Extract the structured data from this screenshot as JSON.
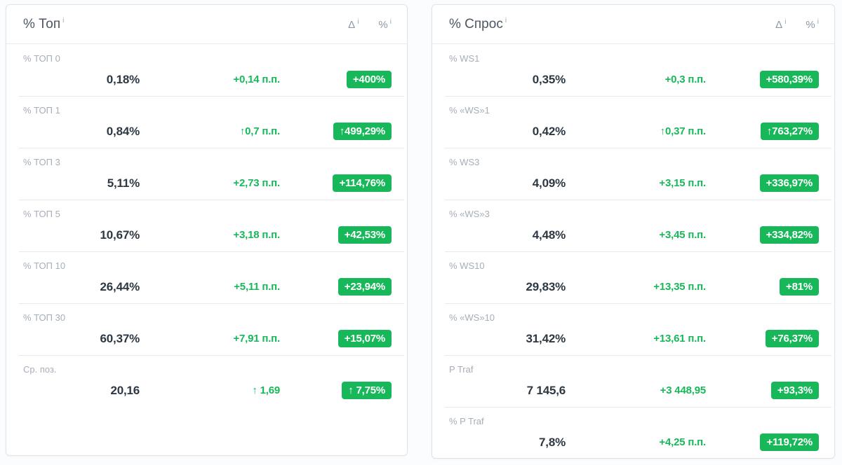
{
  "colors": {
    "positive_green": "#18b85a",
    "value_dark": "#2d3842",
    "label_gray": "#a6aeb8"
  },
  "panels": [
    {
      "title": "% Топ",
      "title_info": "i",
      "legend": {
        "delta_symbol": "Δ",
        "delta_info": "i",
        "percent_symbol": "%",
        "percent_info": "i"
      },
      "rows": [
        {
          "label": "% ТОП 0",
          "value": "0,18%",
          "delta": "+0,14 п.п.",
          "badge": "+400%"
        },
        {
          "label": "% ТОП 1",
          "value": "0,84%",
          "delta": "↑0,7 п.п.",
          "badge": "↑499,29%"
        },
        {
          "label": "% ТОП 3",
          "value": "5,11%",
          "delta": "+2,73 п.п.",
          "badge": "+114,76%"
        },
        {
          "label": "% ТОП 5",
          "value": "10,67%",
          "delta": "+3,18 п.п.",
          "badge": "+42,53%"
        },
        {
          "label": "% ТОП 10",
          "value": "26,44%",
          "delta": "+5,11 п.п.",
          "badge": "+23,94%"
        },
        {
          "label": "% ТОП 30",
          "value": "60,37%",
          "delta": "+7,91 п.п.",
          "badge": "+15,07%"
        },
        {
          "label": "Ср. поз.",
          "value": "20,16",
          "delta": "↑ 1,69",
          "badge": "↑ 7,75%"
        }
      ]
    },
    {
      "title": "% Спрос",
      "title_info": "i",
      "legend": {
        "delta_symbol": "Δ",
        "delta_info": "i",
        "percent_symbol": "%",
        "percent_info": "i"
      },
      "rows": [
        {
          "label": "% WS1",
          "value": "0,35%",
          "delta": "+0,3 п.п.",
          "badge": "+580,39%"
        },
        {
          "label": "% «WS»1",
          "value": "0,42%",
          "delta": "↑0,37 п.п.",
          "badge": "↑763,27%"
        },
        {
          "label": "% WS3",
          "value": "4,09%",
          "delta": "+3,15 п.п.",
          "badge": "+336,97%"
        },
        {
          "label": "% «WS»3",
          "value": "4,48%",
          "delta": "+3,45 п.п.",
          "badge": "+334,82%"
        },
        {
          "label": "% WS10",
          "value": "29,83%",
          "delta": "+13,35 п.п.",
          "badge": "+81%"
        },
        {
          "label": "% «WS»10",
          "value": "31,42%",
          "delta": "+13,61 п.п.",
          "badge": "+76,37%"
        },
        {
          "label": "P Traf",
          "value": "7 145,6",
          "delta": "+3 448,95",
          "badge": "+93,3%"
        },
        {
          "label": "% P Traf",
          "value": "7,8%",
          "delta": "+4,25 п.п.",
          "badge": "+119,72%"
        }
      ]
    }
  ]
}
